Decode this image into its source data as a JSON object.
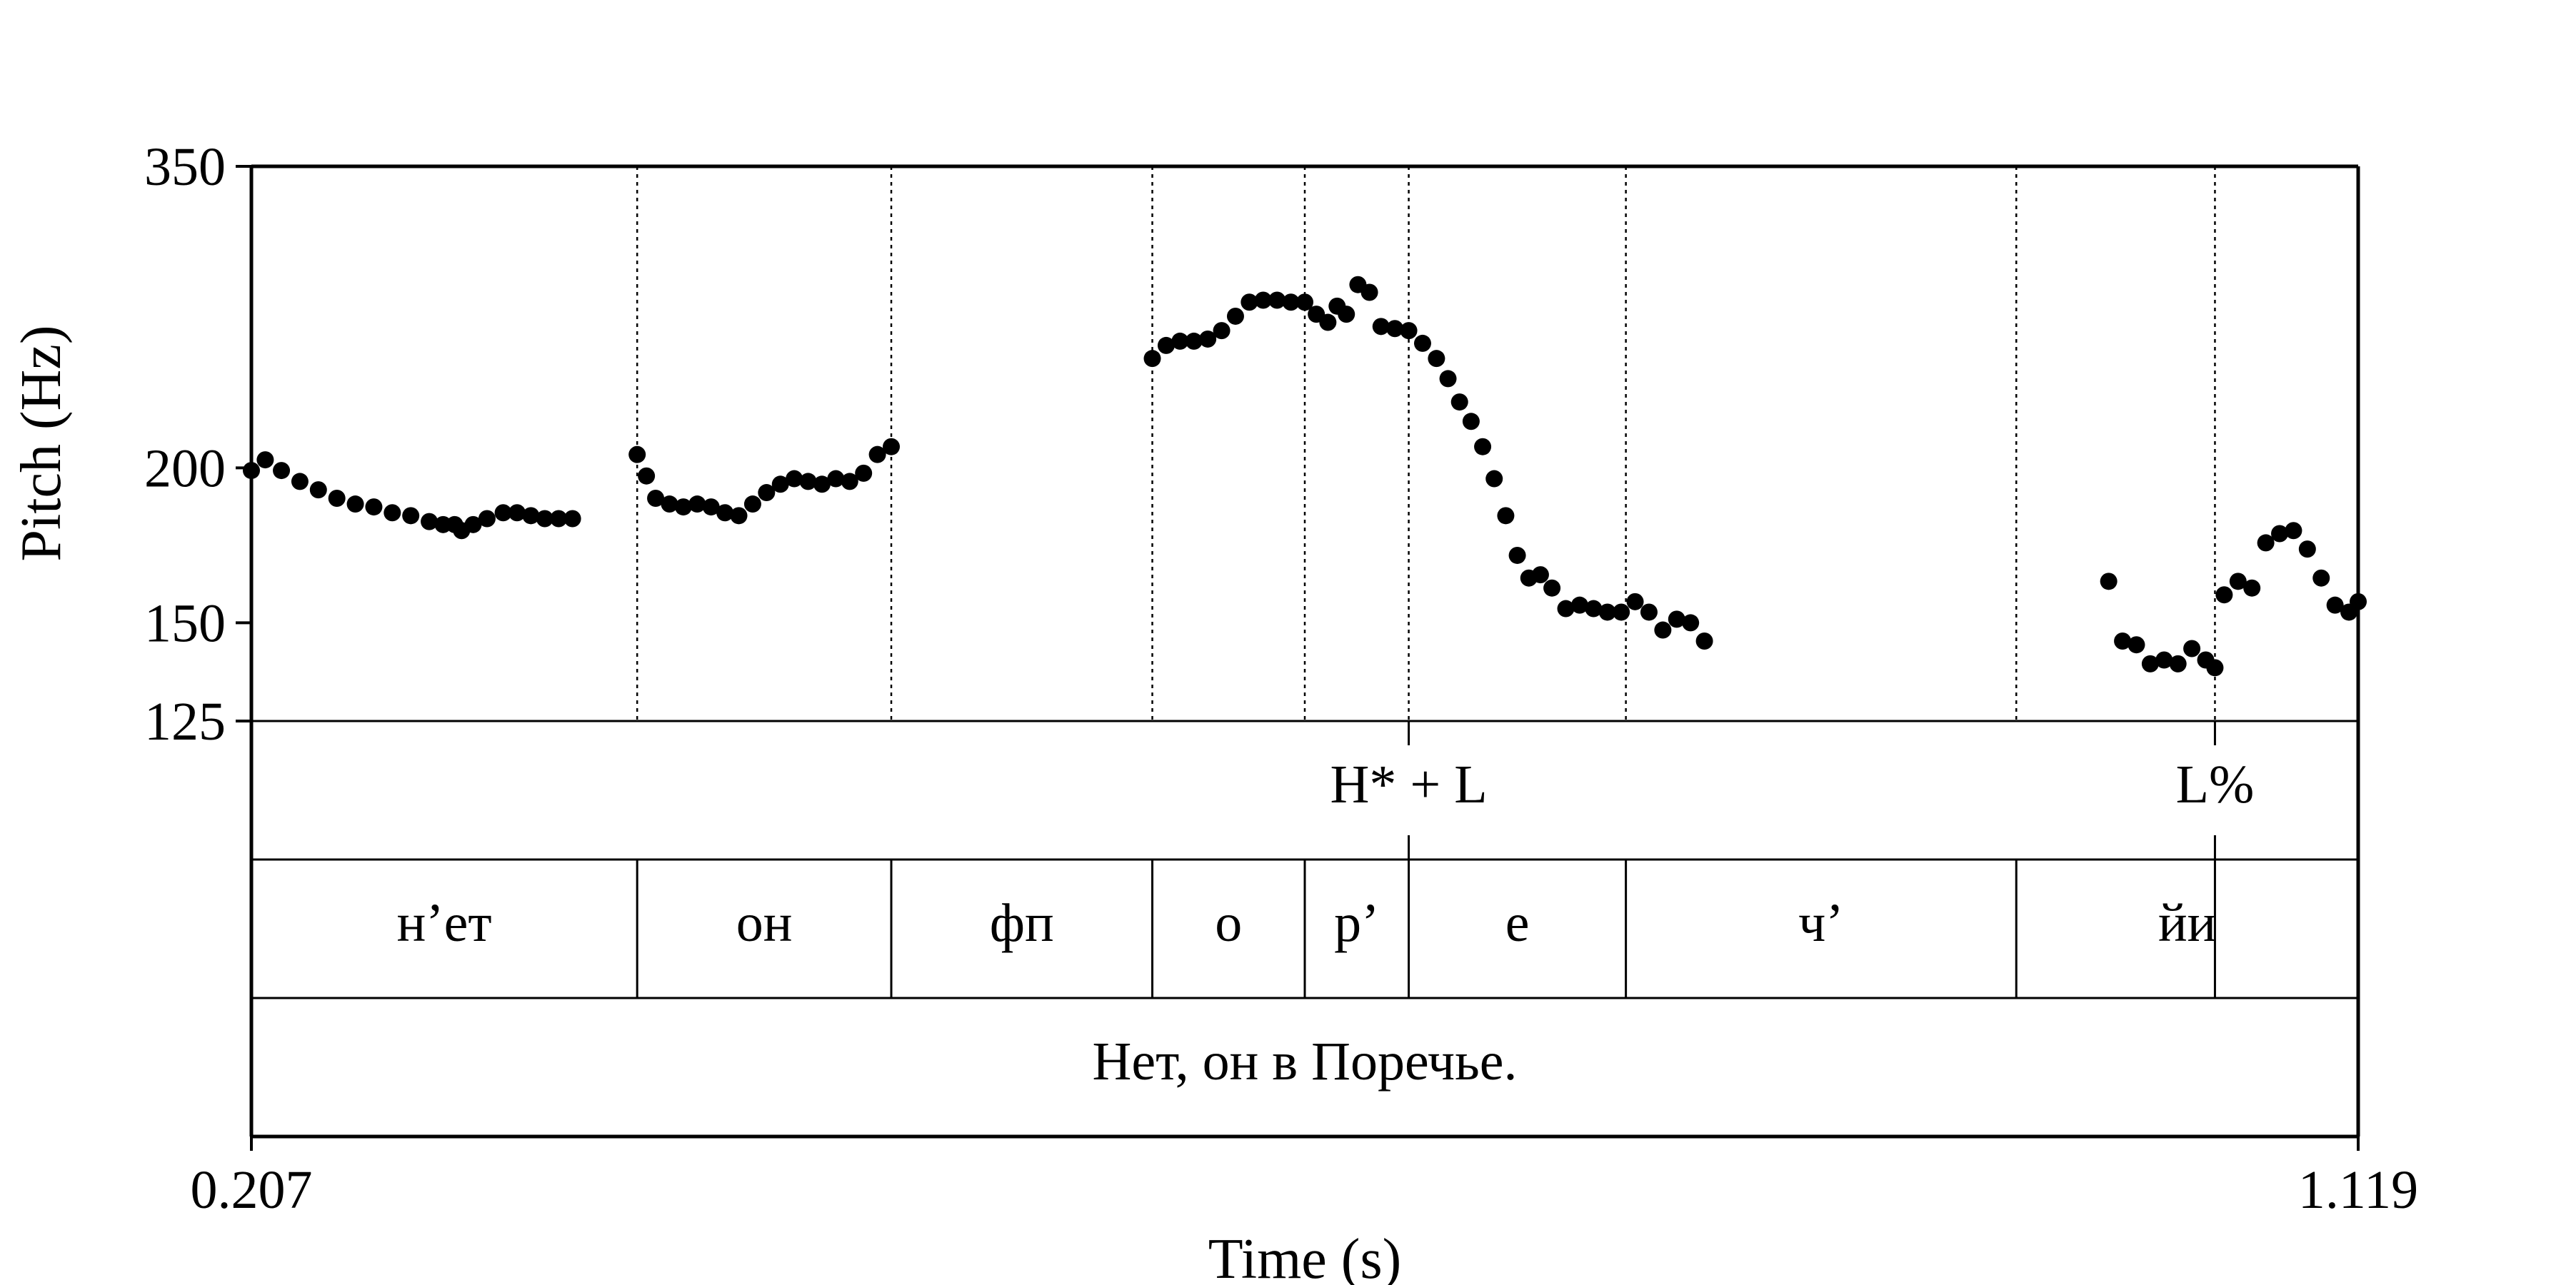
{
  "chart_data": {
    "type": "scatter",
    "title": "",
    "xlabel": "Time (s)",
    "ylabel": "Pitch (Hz)",
    "xlim": [
      0.207,
      1.119
    ],
    "ylim": [
      125,
      350
    ],
    "y_scale": "log",
    "y_ticks": [
      "350",
      "200",
      "150",
      "125"
    ],
    "x_ticks": [
      "0.207",
      "1.119"
    ],
    "boundaries": [
      0.374,
      0.484,
      0.597,
      0.663,
      0.708,
      0.802,
      0.971,
      1.057
    ],
    "tones": [
      {
        "label": "H* + L",
        "time": 0.708
      },
      {
        "label": "L%",
        "time": 1.057
      }
    ],
    "segments": [
      {
        "label": "н’ет",
        "start": 0.207,
        "end": 0.374
      },
      {
        "label": "он",
        "start": 0.374,
        "end": 0.484
      },
      {
        "label": "фп",
        "start": 0.484,
        "end": 0.597
      },
      {
        "label": "о",
        "start": 0.597,
        "end": 0.663
      },
      {
        "label": "р’",
        "start": 0.663,
        "end": 0.708
      },
      {
        "label": "е",
        "start": 0.708,
        "end": 0.802
      },
      {
        "label": "ч’",
        "start": 0.802,
        "end": 0.971
      },
      {
        "label": "йи",
        "start": 0.971,
        "end": 1.119
      }
    ],
    "sentence": "Нет, он в Поречье.",
    "pitch_runs": [
      [
        [
          0.207,
          199
        ],
        [
          0.213,
          203
        ],
        [
          0.22,
          199
        ],
        [
          0.228,
          195
        ],
        [
          0.236,
          192
        ],
        [
          0.244,
          189
        ],
        [
          0.252,
          187
        ],
        [
          0.26,
          186
        ],
        [
          0.268,
          184
        ],
        [
          0.276,
          183
        ],
        [
          0.284,
          181
        ],
        [
          0.29,
          180
        ],
        [
          0.295,
          180
        ],
        [
          0.298,
          178
        ],
        [
          0.303,
          180
        ],
        [
          0.309,
          182
        ],
        [
          0.316,
          184
        ],
        [
          0.322,
          184
        ],
        [
          0.328,
          183
        ],
        [
          0.334,
          182
        ],
        [
          0.34,
          182
        ],
        [
          0.346,
          182
        ]
      ],
      [
        [
          0.374,
          205
        ],
        [
          0.378,
          197
        ],
        [
          0.382,
          189
        ],
        [
          0.388,
          187
        ],
        [
          0.394,
          186
        ],
        [
          0.4,
          187
        ],
        [
          0.406,
          186
        ],
        [
          0.412,
          184
        ],
        [
          0.418,
          183
        ],
        [
          0.424,
          187
        ],
        [
          0.43,
          191
        ],
        [
          0.436,
          194
        ],
        [
          0.442,
          196
        ],
        [
          0.448,
          195
        ],
        [
          0.454,
          194
        ],
        [
          0.46,
          196
        ],
        [
          0.466,
          195
        ],
        [
          0.472,
          198
        ],
        [
          0.478,
          205
        ],
        [
          0.484,
          208
        ]
      ],
      [
        [
          0.597,
          245
        ],
        [
          0.603,
          251
        ],
        [
          0.609,
          253
        ],
        [
          0.615,
          253
        ],
        [
          0.621,
          254
        ],
        [
          0.627,
          258
        ],
        [
          0.633,
          265
        ],
        [
          0.639,
          272
        ],
        [
          0.645,
          273
        ],
        [
          0.651,
          273
        ],
        [
          0.657,
          272
        ],
        [
          0.663,
          272
        ],
        [
          0.668,
          266
        ],
        [
          0.673,
          262
        ],
        [
          0.677,
          270
        ],
        [
          0.681,
          266
        ],
        [
          0.686,
          281
        ],
        [
          0.691,
          277
        ],
        [
          0.696,
          260
        ],
        [
          0.702,
          259
        ],
        [
          0.708,
          258
        ],
        [
          0.714,
          252
        ],
        [
          0.72,
          245
        ],
        [
          0.725,
          236
        ],
        [
          0.73,
          226
        ],
        [
          0.735,
          218
        ],
        [
          0.74,
          208
        ],
        [
          0.745,
          196
        ],
        [
          0.75,
          183
        ],
        [
          0.755,
          170
        ],
        [
          0.76,
          163
        ],
        [
          0.765,
          164
        ],
        [
          0.77,
          160
        ],
        [
          0.776,
          154
        ],
        [
          0.782,
          155
        ],
        [
          0.788,
          154
        ],
        [
          0.794,
          153
        ],
        [
          0.8,
          153
        ],
        [
          0.806,
          156
        ],
        [
          0.812,
          153
        ],
        [
          0.818,
          148
        ],
        [
          0.824,
          151
        ],
        [
          0.83,
          150
        ],
        [
          0.836,
          145
        ]
      ],
      [
        [
          1.011,
          162
        ],
        [
          1.017,
          145
        ],
        [
          1.023,
          144
        ],
        [
          1.029,
          139
        ],
        [
          1.035,
          140
        ],
        [
          1.041,
          139
        ],
        [
          1.047,
          143
        ],
        [
          1.053,
          140
        ],
        [
          1.057,
          138
        ],
        [
          1.061,
          158
        ],
        [
          1.067,
          162
        ],
        [
          1.073,
          160
        ],
        [
          1.079,
          174
        ],
        [
          1.085,
          177
        ],
        [
          1.091,
          178
        ],
        [
          1.097,
          172
        ],
        [
          1.103,
          163
        ],
        [
          1.109,
          155
        ],
        [
          1.115,
          153
        ],
        [
          1.119,
          156
        ]
      ]
    ]
  }
}
